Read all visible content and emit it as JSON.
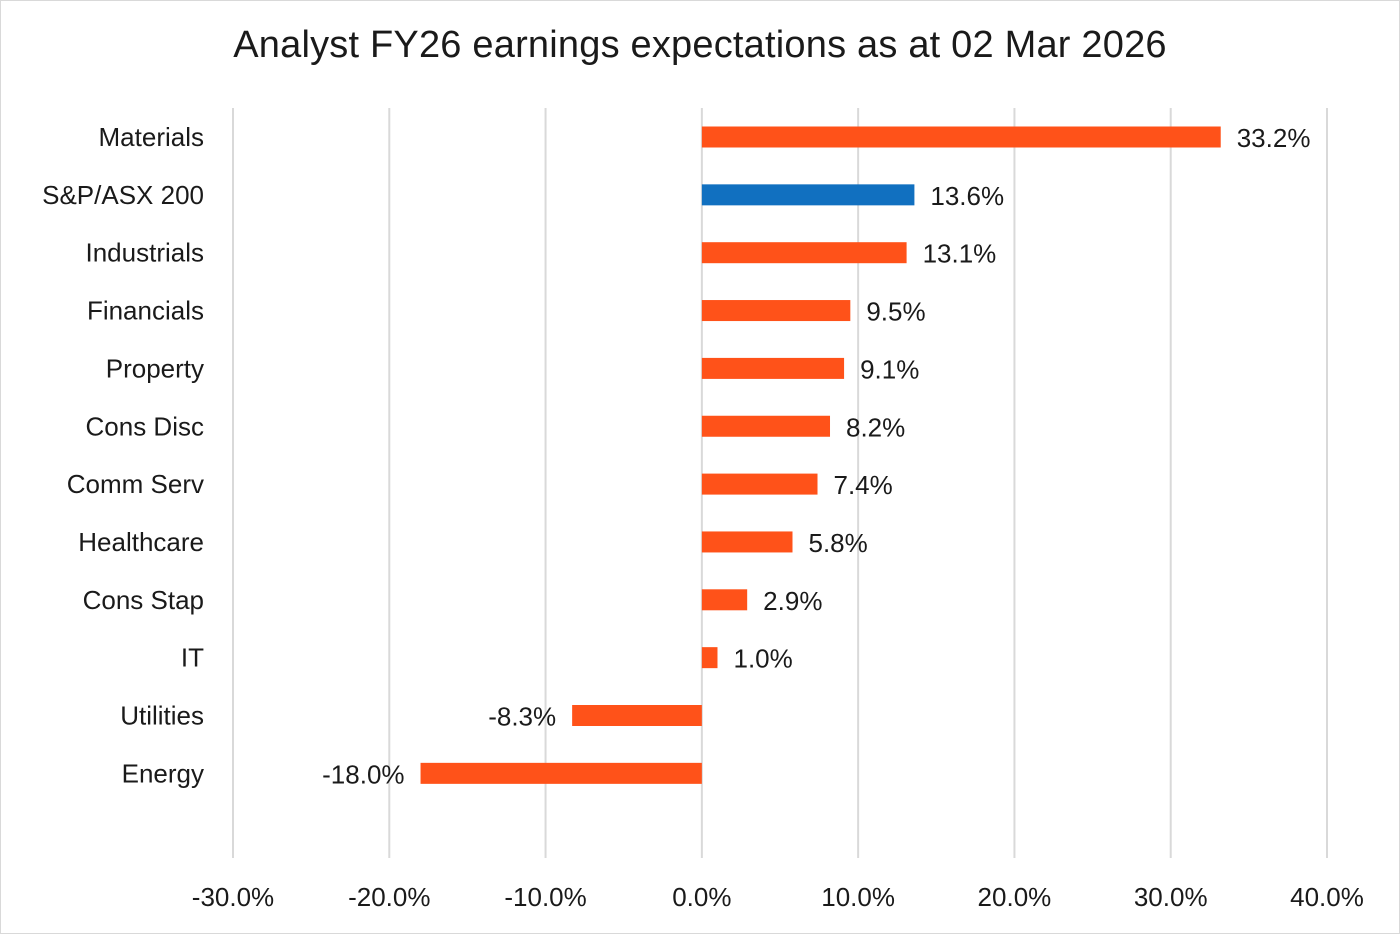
{
  "chart_data": {
    "type": "bar",
    "orientation": "horizontal",
    "title": "Analyst FY26 earnings expectations as at 02 Mar 2026",
    "xlabel": "",
    "ylabel": "",
    "categories": [
      "Materials",
      "S&P/ASX 200",
      "Industrials",
      "Financials",
      "Property",
      "Cons Disc",
      "Comm Serv",
      "Healthcare",
      "Cons Stap",
      "IT",
      "Utilities",
      "Energy"
    ],
    "values": [
      33.2,
      13.6,
      13.1,
      9.5,
      9.1,
      8.2,
      7.4,
      5.8,
      2.9,
      1.0,
      -8.3,
      -18.0
    ],
    "data_labels": [
      "33.2%",
      "13.6%",
      "13.1%",
      "9.5%",
      "9.1%",
      "8.2%",
      "7.4%",
      "5.8%",
      "2.9%",
      "1.0%",
      "-8.3%",
      "-18.0%"
    ],
    "highlight_index": 1,
    "xlim": [
      -30,
      40
    ],
    "x_ticks": [
      -30,
      -20,
      -10,
      0,
      10,
      20,
      30,
      40
    ],
    "x_tick_labels": [
      "-30.0%",
      "-20.0%",
      "-10.0%",
      "0.0%",
      "10.0%",
      "20.0%",
      "30.0%",
      "40.0%"
    ],
    "grid": "vertical",
    "legend": "none",
    "colors": {
      "bar": "#ff5219",
      "highlight": "#1170c0",
      "grid": "#d9d9d9",
      "text": "#1a1a1a"
    }
  }
}
